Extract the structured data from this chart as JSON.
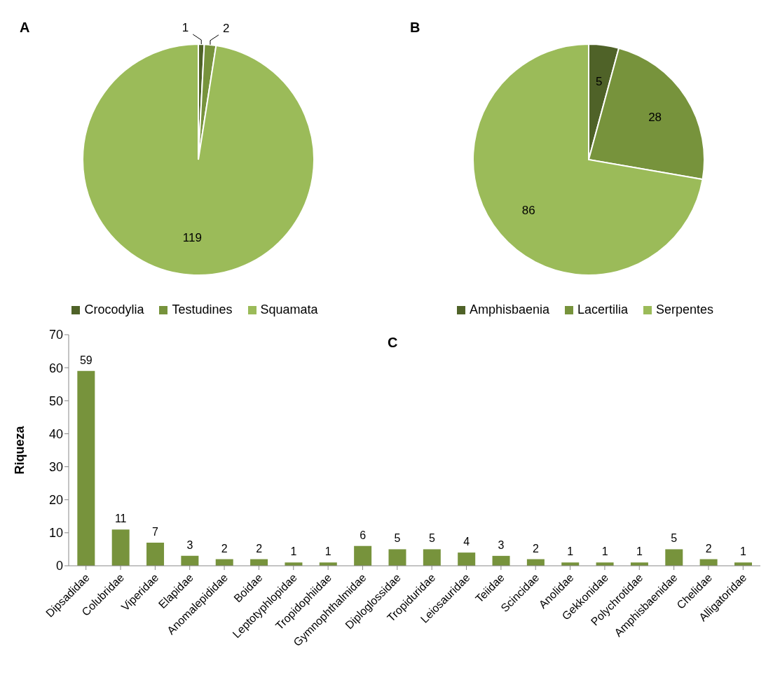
{
  "chart_data": [
    {
      "type": "pie",
      "title": "A",
      "categories": [
        "Crocodylia",
        "Testudines",
        "Squamata"
      ],
      "values": [
        1,
        2,
        119
      ],
      "colors": [
        "#4f6228",
        "#77933c",
        "#9bbb59"
      ],
      "legend": "bottom",
      "data_labels": true
    },
    {
      "type": "pie",
      "title": "B",
      "categories": [
        "Amphisbaenia",
        "Lacertilia",
        "Serpentes"
      ],
      "values": [
        5,
        28,
        86
      ],
      "colors": [
        "#4f6228",
        "#77933c",
        "#9bbb59"
      ],
      "legend": "bottom",
      "data_labels": true
    },
    {
      "type": "bar",
      "title": "C",
      "ylabel": "Riqueza",
      "categories": [
        "Dipsadidae",
        "Colubridae",
        "Viperidae",
        "Elapidae",
        "Anomalepididae",
        "Boidae",
        "Leptotyphlopidae",
        "Tropidophiidae",
        "Gymnophthalmidae",
        "Diploglossidae",
        "Tropiduridae",
        "Leiosauridae",
        "Teiidae",
        "Scincidae",
        "Anolidae",
        "Gekkonidae",
        "Polychrotidae",
        "Amphisbaenidae",
        "Chelidae",
        "Alligatoridae"
      ],
      "values": [
        59,
        11,
        7,
        3,
        2,
        2,
        1,
        1,
        6,
        5,
        5,
        4,
        3,
        2,
        1,
        1,
        1,
        5,
        2,
        1
      ],
      "color": "#77933c",
      "ylim": [
        0,
        70
      ],
      "yticks": [
        0,
        10,
        20,
        30,
        40,
        50,
        60,
        70
      ],
      "data_labels": true
    }
  ]
}
